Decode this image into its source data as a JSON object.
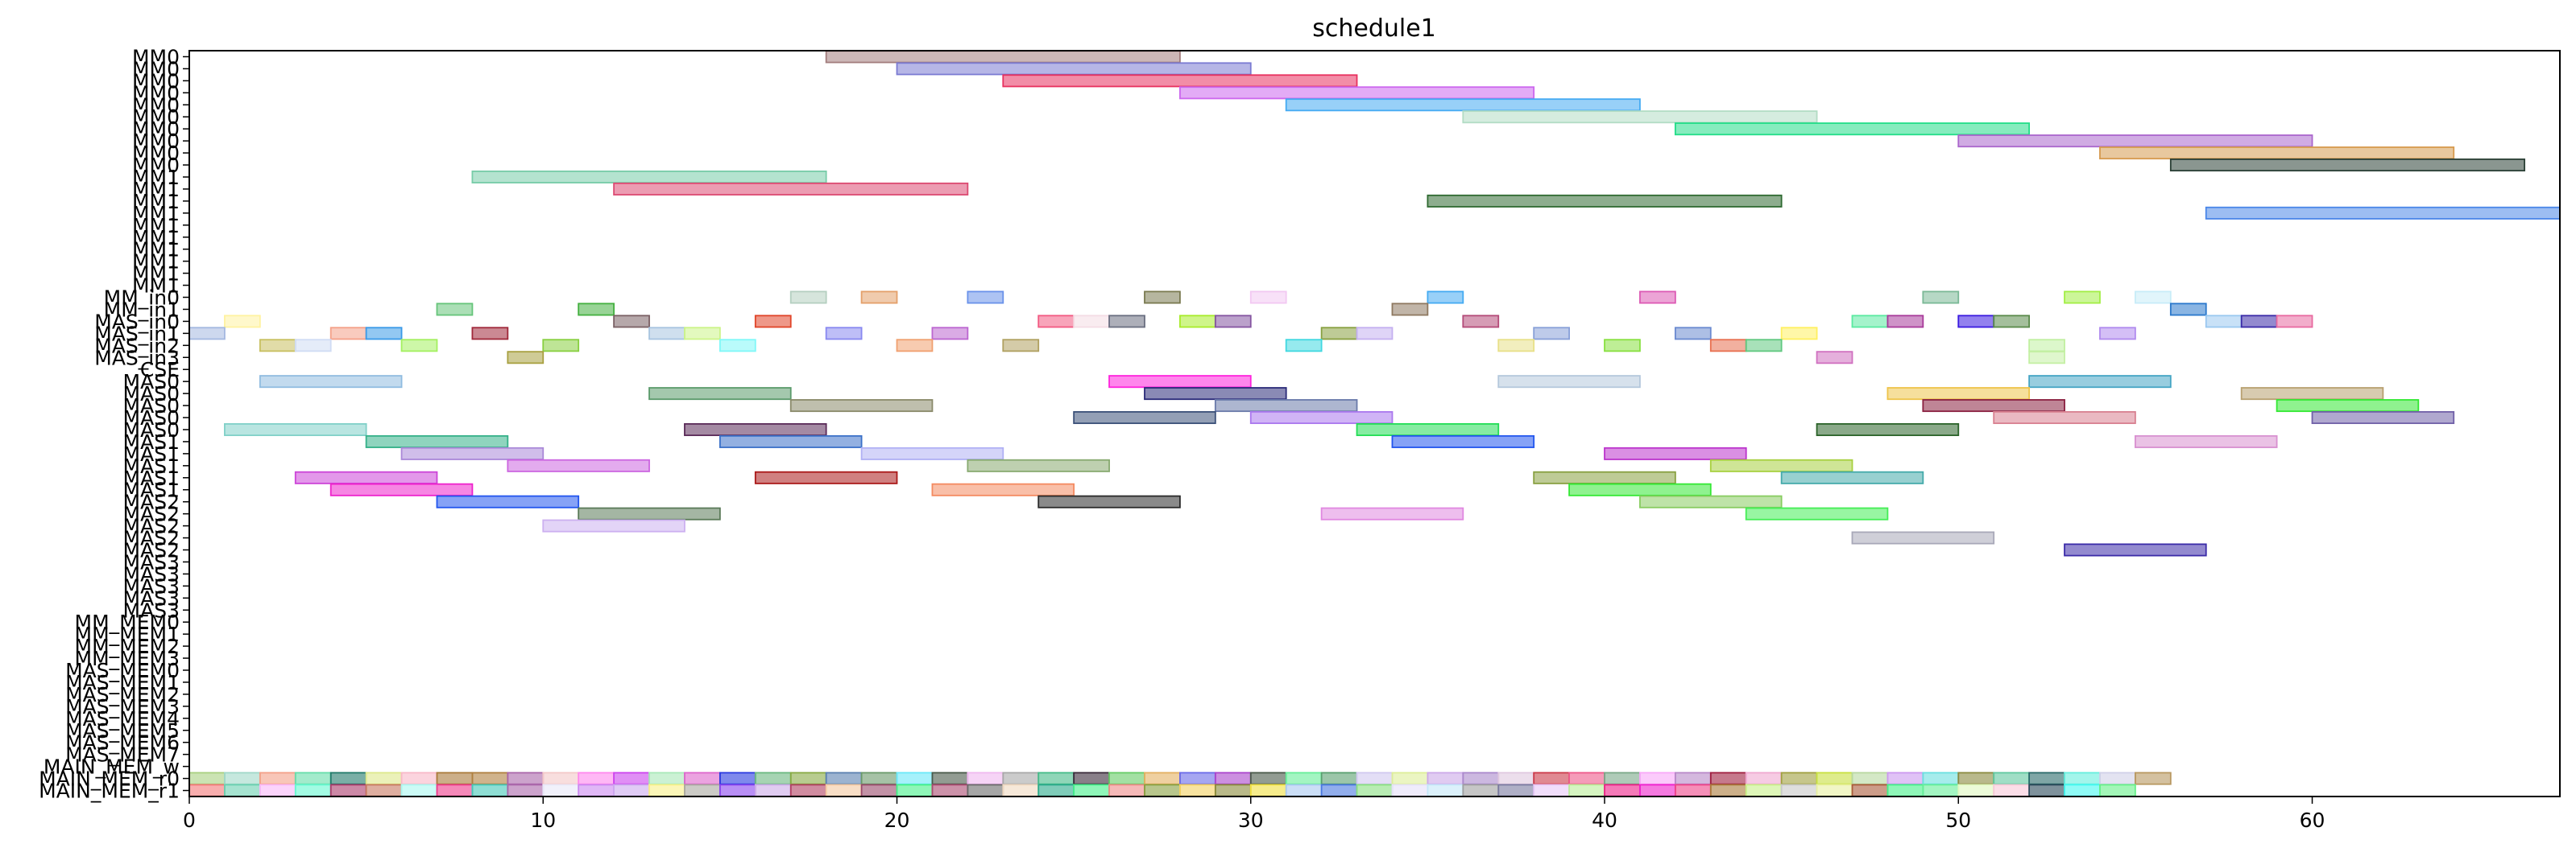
{
  "chart_data": {
    "type": "gantt",
    "title": "schedule1",
    "xlabel": "",
    "ylabel": "",
    "xlim": [
      0,
      67
    ],
    "xticks": [
      0,
      10,
      20,
      30,
      40,
      50,
      60
    ],
    "grid": false,
    "rows": [
      "MM0",
      "MM0",
      "MM0",
      "MM0",
      "MM0",
      "MM0",
      "MM0",
      "MM0",
      "MM0",
      "MM0",
      "MM1",
      "MM1",
      "MM1",
      "MM1",
      "MM1",
      "MM1",
      "MM1",
      "MM1",
      "MM1",
      "MM1",
      "MM_in0",
      "MM_in1",
      "MAS_in0",
      "MAS_in1",
      "MAS_in2",
      "MAS_in3",
      "CSE",
      "MAS0",
      "MAS0",
      "MAS0",
      "MAS0",
      "MAS0",
      "MAS1",
      "MAS1",
      "MAS1",
      "MAS1",
      "MAS1",
      "MAS2",
      "MAS2",
      "MAS2",
      "MAS2",
      "MAS2",
      "MAS3",
      "MAS3",
      "MAS3",
      "MAS3",
      "MAS3",
      "MM_MEM0",
      "MM_MEM1",
      "MM_MEM2",
      "MM_MEM3",
      "MAS_MEM0",
      "MAS_MEM1",
      "MAS_MEM2",
      "MAS_MEM3",
      "MAS_MEM4",
      "MAS_MEM5",
      "MAS_MEM6",
      "MAS_MEM7",
      "MAIN_MEM_w",
      "MAIN_MEM_r0",
      "MAIN_MEM_r1"
    ],
    "tasks": [
      {
        "row": 0,
        "start": 18,
        "end": 28,
        "color": "#a27c7c"
      },
      {
        "row": 1,
        "start": 20,
        "end": 30,
        "color": "#7a7ad2"
      },
      {
        "row": 2,
        "start": 23,
        "end": 33,
        "color": "#e8305e"
      },
      {
        "row": 3,
        "start": 28,
        "end": 38,
        "color": "#cc66ee"
      },
      {
        "row": 4,
        "start": 31,
        "end": 41,
        "color": "#44aaf2"
      },
      {
        "row": 5,
        "start": 36,
        "end": 46,
        "color": "#b2dcc4"
      },
      {
        "row": 6,
        "start": 42,
        "end": 52,
        "color": "#22dd88"
      },
      {
        "row": 7,
        "start": 50,
        "end": 60,
        "color": "#aa66cc"
      },
      {
        "row": 8,
        "start": 54,
        "end": 64,
        "color": "#d69a4e"
      },
      {
        "row": 9,
        "start": 56,
        "end": 66,
        "color": "#2a3f35"
      },
      {
        "row": 10,
        "start": 8,
        "end": 18,
        "color": "#77cca8"
      },
      {
        "row": 11,
        "start": 12,
        "end": 22,
        "color": "#dc4a72"
      },
      {
        "row": 12,
        "start": 35,
        "end": 45,
        "color": "#2f6a31"
      },
      {
        "row": 13,
        "start": 57,
        "end": 67,
        "color": "#4a86e8"
      },
      {
        "row": 20,
        "start": 17,
        "end": 18,
        "color": "#b4cfc0"
      },
      {
        "row": 20,
        "start": 19,
        "end": 20,
        "color": "#e4a06a"
      },
      {
        "row": 20,
        "start": 22,
        "end": 23,
        "color": "#6a92ea"
      },
      {
        "row": 20,
        "start": 27,
        "end": 28,
        "color": "#7a7a50"
      },
      {
        "row": 20,
        "start": 30,
        "end": 31,
        "color": "#f2c8f2"
      },
      {
        "row": 20,
        "start": 35,
        "end": 36,
        "color": "#44aaf2"
      },
      {
        "row": 20,
        "start": 41,
        "end": 42,
        "color": "#dc5ab4"
      },
      {
        "row": 20,
        "start": 49,
        "end": 50,
        "color": "#7ab896"
      },
      {
        "row": 20,
        "start": 53,
        "end": 54,
        "color": "#a2ee44"
      },
      {
        "row": 20,
        "start": 55,
        "end": 56,
        "color": "#c8ecf8"
      },
      {
        "row": 21,
        "start": 7,
        "end": 8,
        "color": "#66c47a"
      },
      {
        "row": 21,
        "start": 11,
        "end": 12,
        "color": "#44b040"
      },
      {
        "row": 21,
        "start": 34,
        "end": 35,
        "color": "#8e7860"
      },
      {
        "row": 21,
        "start": 56,
        "end": 57,
        "color": "#2a78cc"
      },
      {
        "row": 22,
        "start": 1,
        "end": 2,
        "color": "#fff2a0"
      },
      {
        "row": 22,
        "start": 12,
        "end": 13,
        "color": "#7a6064"
      },
      {
        "row": 22,
        "start": 16,
        "end": 17,
        "color": "#e04428"
      },
      {
        "row": 22,
        "start": 24,
        "end": 25,
        "color": "#f25a82"
      },
      {
        "row": 22,
        "start": 25,
        "end": 26,
        "color": "#f4dce4"
      },
      {
        "row": 22,
        "start": 26,
        "end": 27,
        "color": "#6a6e80"
      },
      {
        "row": 22,
        "start": 28,
        "end": 29,
        "color": "#a8ec2a"
      },
      {
        "row": 22,
        "start": 29,
        "end": 30,
        "color": "#8454a0"
      },
      {
        "row": 22,
        "start": 36,
        "end": 37,
        "color": "#b44a78"
      },
      {
        "row": 22,
        "start": 47,
        "end": 48,
        "color": "#5aeaa0"
      },
      {
        "row": 22,
        "start": 48,
        "end": 49,
        "color": "#a83a9a"
      },
      {
        "row": 22,
        "start": 50,
        "end": 51,
        "color": "#3a1ae0"
      },
      {
        "row": 22,
        "start": 51,
        "end": 52,
        "color": "#5a8a4a"
      },
      {
        "row": 22,
        "start": 57,
        "end": 58,
        "color": "#9ac8f0"
      },
      {
        "row": 22,
        "start": 58,
        "end": 59,
        "color": "#3a2aa8"
      },
      {
        "row": 22,
        "start": 59,
        "end": 60,
        "color": "#e86aa0"
      },
      {
        "row": 23,
        "start": 0,
        "end": 1,
        "color": "#a4b8e0"
      },
      {
        "row": 23,
        "start": 4,
        "end": 5,
        "color": "#f4a088"
      },
      {
        "row": 23,
        "start": 5,
        "end": 6,
        "color": "#3a9ae8"
      },
      {
        "row": 23,
        "start": 8,
        "end": 9,
        "color": "#a0283a"
      },
      {
        "row": 23,
        "start": 13,
        "end": 14,
        "color": "#a8c4e0"
      },
      {
        "row": 23,
        "start": 14,
        "end": 15,
        "color": "#ccf488"
      },
      {
        "row": 23,
        "start": 18,
        "end": 19,
        "color": "#8888f0"
      },
      {
        "row": 23,
        "start": 21,
        "end": 22,
        "color": "#bb66d0"
      },
      {
        "row": 23,
        "start": 32,
        "end": 33,
        "color": "#88a040"
      },
      {
        "row": 23,
        "start": 33,
        "end": 34,
        "color": "#c4b0f0"
      },
      {
        "row": 23,
        "start": 38,
        "end": 39,
        "color": "#88a0d8"
      },
      {
        "row": 23,
        "start": 42,
        "end": 43,
        "color": "#6a8ad0"
      },
      {
        "row": 23,
        "start": 45,
        "end": 46,
        "color": "#fff060"
      },
      {
        "row": 23,
        "start": 54,
        "end": 55,
        "color": "#b08aee"
      },
      {
        "row": 24,
        "start": 2,
        "end": 3,
        "color": "#c8c060"
      },
      {
        "row": 24,
        "start": 3,
        "end": 4,
        "color": "#d0dcf4"
      },
      {
        "row": 24,
        "start": 6,
        "end": 7,
        "color": "#a4f060"
      },
      {
        "row": 24,
        "start": 10,
        "end": 11,
        "color": "#88d040"
      },
      {
        "row": 24,
        "start": 15,
        "end": 16,
        "color": "#80f8f8"
      },
      {
        "row": 24,
        "start": 20,
        "end": 21,
        "color": "#f0a070"
      },
      {
        "row": 24,
        "start": 23,
        "end": 24,
        "color": "#b0a060"
      },
      {
        "row": 24,
        "start": 31,
        "end": 32,
        "color": "#40d8e0"
      },
      {
        "row": 24,
        "start": 37,
        "end": 38,
        "color": "#e8e088"
      },
      {
        "row": 24,
        "start": 40,
        "end": 41,
        "color": "#88e040"
      },
      {
        "row": 24,
        "start": 43,
        "end": 44,
        "color": "#e87050"
      },
      {
        "row": 24,
        "start": 44,
        "end": 45,
        "color": "#60c880"
      },
      {
        "row": 24,
        "start": 52,
        "end": 53,
        "color": "#c0f0a0"
      },
      {
        "row": 25,
        "start": 9,
        "end": 10,
        "color": "#a8a040"
      },
      {
        "row": 25,
        "start": 46,
        "end": 47,
        "color": "#d070c0"
      },
      {
        "row": 25,
        "start": 52,
        "end": 53,
        "color": "#c4f0a4"
      },
      {
        "row": 27,
        "start": 2,
        "end": 6,
        "color": "#90bce0"
      },
      {
        "row": 27,
        "start": 26,
        "end": 30,
        "color": "#ff22dd"
      },
      {
        "row": 27,
        "start": 37,
        "end": 41,
        "color": "#b4c8dc"
      },
      {
        "row": 27,
        "start": 52,
        "end": 56,
        "color": "#44a4c4"
      },
      {
        "row": 28,
        "start": 13,
        "end": 17,
        "color": "#5a9a6a"
      },
      {
        "row": 28,
        "start": 27,
        "end": 31,
        "color": "#2a2a78"
      },
      {
        "row": 28,
        "start": 48,
        "end": 52,
        "color": "#eec44a"
      },
      {
        "row": 28,
        "start": 58,
        "end": 62,
        "color": "#b8a070"
      },
      {
        "row": 29,
        "start": 17,
        "end": 21,
        "color": "#8a8a6a"
      },
      {
        "row": 29,
        "start": 29,
        "end": 33,
        "color": "#6a7aaa"
      },
      {
        "row": 29,
        "start": 49,
        "end": 53,
        "color": "#8a2040"
      },
      {
        "row": 29,
        "start": 59,
        "end": 63,
        "color": "#33e833"
      },
      {
        "row": 30,
        "start": 25,
        "end": 29,
        "color": "#3a5078"
      },
      {
        "row": 30,
        "start": 30,
        "end": 34,
        "color": "#aa77ee"
      },
      {
        "row": 30,
        "start": 51,
        "end": 55,
        "color": "#d88090"
      },
      {
        "row": 30,
        "start": 60,
        "end": 64,
        "color": "#7060a8"
      },
      {
        "row": 31,
        "start": 1,
        "end": 5,
        "color": "#80d0c8"
      },
      {
        "row": 31,
        "start": 14,
        "end": 18,
        "color": "#5a2a58"
      },
      {
        "row": 31,
        "start": 33,
        "end": 37,
        "color": "#22dd55"
      },
      {
        "row": 31,
        "start": 46,
        "end": 50,
        "color": "#2a6228"
      },
      {
        "row": 32,
        "start": 5,
        "end": 9,
        "color": "#33b088"
      },
      {
        "row": 32,
        "start": 15,
        "end": 19,
        "color": "#3a70c8"
      },
      {
        "row": 32,
        "start": 34,
        "end": 38,
        "color": "#2255ee"
      },
      {
        "row": 32,
        "start": 55,
        "end": 59,
        "color": "#d890d0"
      },
      {
        "row": 33,
        "start": 6,
        "end": 10,
        "color": "#aa88d8"
      },
      {
        "row": 33,
        "start": 19,
        "end": 23,
        "color": "#b0b0f4"
      },
      {
        "row": 33,
        "start": 40,
        "end": 44,
        "color": "#bb33cc"
      },
      {
        "row": 34,
        "start": 9,
        "end": 13,
        "color": "#cc66e0"
      },
      {
        "row": 34,
        "start": 22,
        "end": 26,
        "color": "#88aa70"
      },
      {
        "row": 34,
        "start": 43,
        "end": 47,
        "color": "#a8d040"
      },
      {
        "row": 35,
        "start": 3,
        "end": 7,
        "color": "#cc44d8"
      },
      {
        "row": 35,
        "start": 16,
        "end": 20,
        "color": "#aa1818"
      },
      {
        "row": 35,
        "start": 38,
        "end": 42,
        "color": "#88a040"
      },
      {
        "row": 35,
        "start": 45,
        "end": 49,
        "color": "#44aaaa"
      },
      {
        "row": 36,
        "start": 4,
        "end": 8,
        "color": "#ee22cc"
      },
      {
        "row": 36,
        "start": 21,
        "end": 25,
        "color": "#f48a60"
      },
      {
        "row": 36,
        "start": 39,
        "end": 43,
        "color": "#33e833"
      },
      {
        "row": 37,
        "start": 7,
        "end": 11,
        "color": "#2255ee"
      },
      {
        "row": 37,
        "start": 24,
        "end": 28,
        "color": "#2a2a2a"
      },
      {
        "row": 37,
        "start": 41,
        "end": 45,
        "color": "#88cc60"
      },
      {
        "row": 38,
        "start": 11,
        "end": 15,
        "color": "#5a7a58"
      },
      {
        "row": 38,
        "start": 32,
        "end": 36,
        "color": "#e088e0"
      },
      {
        "row": 38,
        "start": 44,
        "end": 48,
        "color": "#44ee55"
      },
      {
        "row": 39,
        "start": 10,
        "end": 14,
        "color": "#ccb0f0"
      },
      {
        "row": 40,
        "start": 47,
        "end": 51,
        "color": "#a8a8b8"
      },
      {
        "row": 41,
        "start": 53,
        "end": 57,
        "color": "#3a2aa8"
      }
    ],
    "mem_rows": {
      "MAIN_MEM_r0": [
        "#a8d080",
        "#a0d8c8",
        "#f4a088",
        "#66ddaa",
        "#227a6a",
        "#dde88a",
        "#f8b8c8",
        "#aa7a3a",
        "#b08040",
        "#aa66aa",
        "#f4c8c8",
        "#ff88ee",
        "#cc44ee",
        "#a8e8b8",
        "#dd66cc",
        "#2a3ae0",
        "#6ab880",
        "#88aa44",
        "#5a80b0",
        "#6a9a6a",
        "#6ae8f8",
        "#4a5a4a",
        "#f0b8f0",
        "#a8a8a8",
        "#44bb88",
        "#3a2a3a",
        "#66cc66",
        "#e4b060",
        "#6a6ae8",
        "#aa44cc",
        "#4a5a4a",
        "#66ee99",
        "#5aa070",
        "#d0c8f0",
        "#ddee99",
        "#cca8e8",
        "#aa88cc",
        "#e0c8e0",
        "#cc3a4a",
        "#ee5a8a",
        "#7aa888",
        "#f8a8f8",
        "#b888c8",
        "#a02040",
        "#f0a8d0",
        "#a0a040",
        "#c8e040",
        "#b8d8a0",
        "#cc99f0",
        "#6ae0e0",
        "#8a8a40",
        "#60c8a0",
        "#2a6a6a",
        "#66eedd",
        "#d0d0e8",
        "#b89860"
      ],
      "MAIN_MEM_r1": [
        "#f47878",
        "#6ad0b0",
        "#f8b8f8",
        "#66f8d0",
        "#aa3a6a",
        "#c87860",
        "#aaf8f0",
        "#ee3a8a",
        "#44c8b8",
        "#aa66aa",
        "#e8e8f8",
        "#cc88f0",
        "#ccaaee",
        "#f8f088",
        "#aaa8a0",
        "#8a44ee",
        "#ccaae8",
        "#b04060",
        "#f4c8a0",
        "#9a4a6a",
        "#44f088",
        "#aa4a70",
        "#6a6a6a",
        "#f0d8c0",
        "#2aaa8a",
        "#44f08a",
        "#ee8a88",
        "#88a040",
        "#f4d060",
        "#8a8a3a",
        "#f0e040",
        "#a8c8f0",
        "#4a78e0",
        "#88e080",
        "#e4e0f8",
        "#c4e8f8",
        "#a0a0a0",
        "#7a7aa0",
        "#e8c8f8",
        "#bbee99",
        "#ee2288",
        "#ee22cc",
        "#ee4488",
        "#aa7a3a",
        "#c8f088",
        "#c8c8c8",
        "#e8f0a0",
        "#aa5a3a",
        "#44f088",
        "#66ee99",
        "#e0f8c0",
        "#f8c8d8",
        "#2a4a5a",
        "#44f8f0",
        "#66f088"
      ]
    }
  }
}
